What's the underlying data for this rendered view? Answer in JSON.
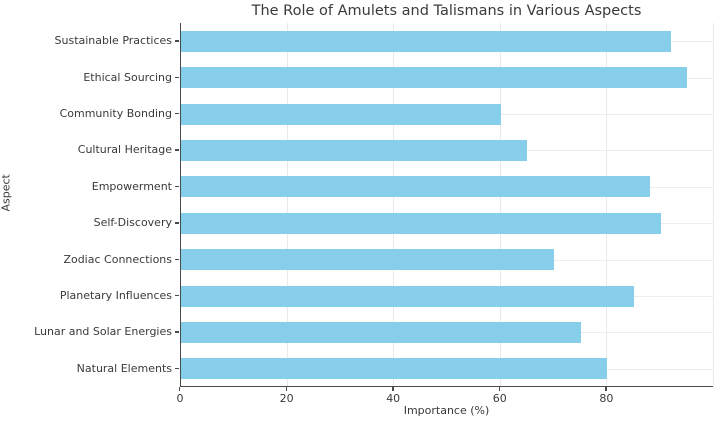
{
  "chart_data": {
    "type": "bar",
    "orientation": "horizontal",
    "title": "The Role of Amulets and Talismans in Various Aspects",
    "xlabel": "Importance (%)",
    "ylabel": "Aspect",
    "categories": [
      "Sustainable Practices",
      "Ethical Sourcing",
      "Community Bonding",
      "Cultural Heritage",
      "Empowerment",
      "Self-Discovery",
      "Zodiac Connections",
      "Planetary Influences",
      "Lunar and Solar Energies",
      "Natural Elements"
    ],
    "values": [
      92,
      95,
      60,
      65,
      88,
      90,
      70,
      85,
      75,
      80
    ],
    "xlim": [
      0,
      100
    ],
    "xticks": [
      0,
      20,
      40,
      60,
      80
    ],
    "grid_lines_x": [
      20,
      40,
      60,
      80,
      100
    ],
    "grid": true,
    "legend": "none",
    "bar_color": "#87CEEB",
    "grid_color": "#e9e9e9",
    "axis_color": "#4a4a4a",
    "text_color": "#3a3a3a",
    "background_color": "#ffffff"
  }
}
